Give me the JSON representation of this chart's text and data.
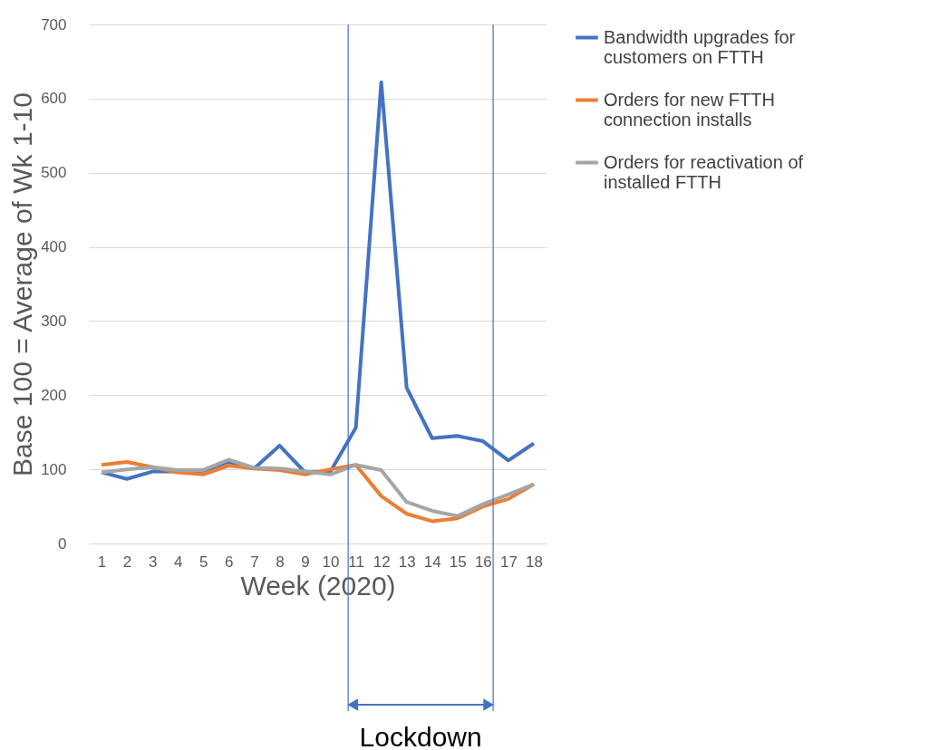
{
  "chart_data": {
    "type": "line",
    "xlabel": "Week (2020)",
    "ylabel": "Base 100 = Average of Wk 1-10",
    "x": [
      1,
      2,
      3,
      4,
      5,
      6,
      7,
      8,
      9,
      10,
      11,
      12,
      13,
      14,
      15,
      16,
      17,
      18
    ],
    "xlim": [
      0.5,
      18.5
    ],
    "xticks": [
      1,
      2,
      3,
      4,
      5,
      6,
      7,
      8,
      9,
      10,
      11,
      12,
      13,
      14,
      15,
      16,
      17,
      18
    ],
    "ylim": [
      0,
      700
    ],
    "yticks": [
      0,
      100,
      200,
      300,
      400,
      500,
      600,
      700
    ],
    "grid": "y",
    "legend": "right",
    "marker": "none",
    "line_style": "solid",
    "series": [
      {
        "name": "Bandwidth upgrades for customers on FTTH",
        "color": "#4472c4",
        "values": [
          96,
          87,
          97,
          97,
          98,
          110,
          101,
          132,
          96,
          97,
          156,
          622,
          210,
          142,
          145,
          138,
          112,
          135
        ]
      },
      {
        "name": "Orders for new FTTH connection installs",
        "color": "#ed7d31",
        "values": [
          106,
          110,
          103,
          96,
          93,
          105,
          101,
          99,
          93,
          100,
          106,
          64,
          40,
          30,
          34,
          50,
          60,
          80
        ]
      },
      {
        "name": "Orders for reactivation of installed FTTH",
        "color": "#a5a5a5",
        "values": [
          96,
          100,
          103,
          99,
          99,
          113,
          102,
          101,
          97,
          93,
          106,
          99,
          56,
          44,
          37,
          53,
          66,
          80
        ]
      }
    ],
    "ref_lines": [
      {
        "axis": "x",
        "value": 10.7,
        "color": "#4472c4"
      },
      {
        "axis": "x",
        "value": 16.4,
        "color": "#4472c4"
      }
    ],
    "annotations": [
      "Lockdown"
    ]
  }
}
